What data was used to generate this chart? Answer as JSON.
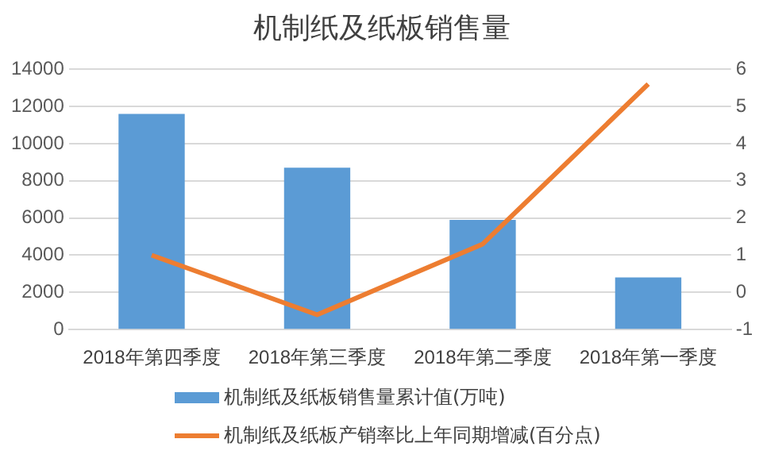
{
  "chart_data": {
    "type": "bar",
    "title": "机制纸及纸板销售量",
    "categories": [
      "2018年第四季度",
      "2018年第三季度",
      "2018年第二季度",
      "2018年第一季度"
    ],
    "series": [
      {
        "name": "机制纸及纸板销售量累计值(万吨)",
        "color": "#5b9bd5",
        "values": [
          11600,
          8700,
          5900,
          2800
        ]
      },
      {
        "name": "机制纸及纸板产销率比上年同期增减(百分点)",
        "type": "line",
        "axis": "y2",
        "color": "#ed7d31",
        "values": [
          1.0,
          -0.6,
          1.3,
          5.6
        ]
      }
    ],
    "ylim": [
      0,
      14000
    ],
    "yticks": [
      0,
      2000,
      4000,
      6000,
      8000,
      10000,
      12000,
      14000
    ],
    "y2lim": [
      -1,
      6
    ],
    "y2ticks": [
      -1,
      0,
      1,
      2,
      3,
      4,
      5,
      6
    ],
    "grid": "y",
    "legend": "bottom",
    "marker": "none"
  }
}
